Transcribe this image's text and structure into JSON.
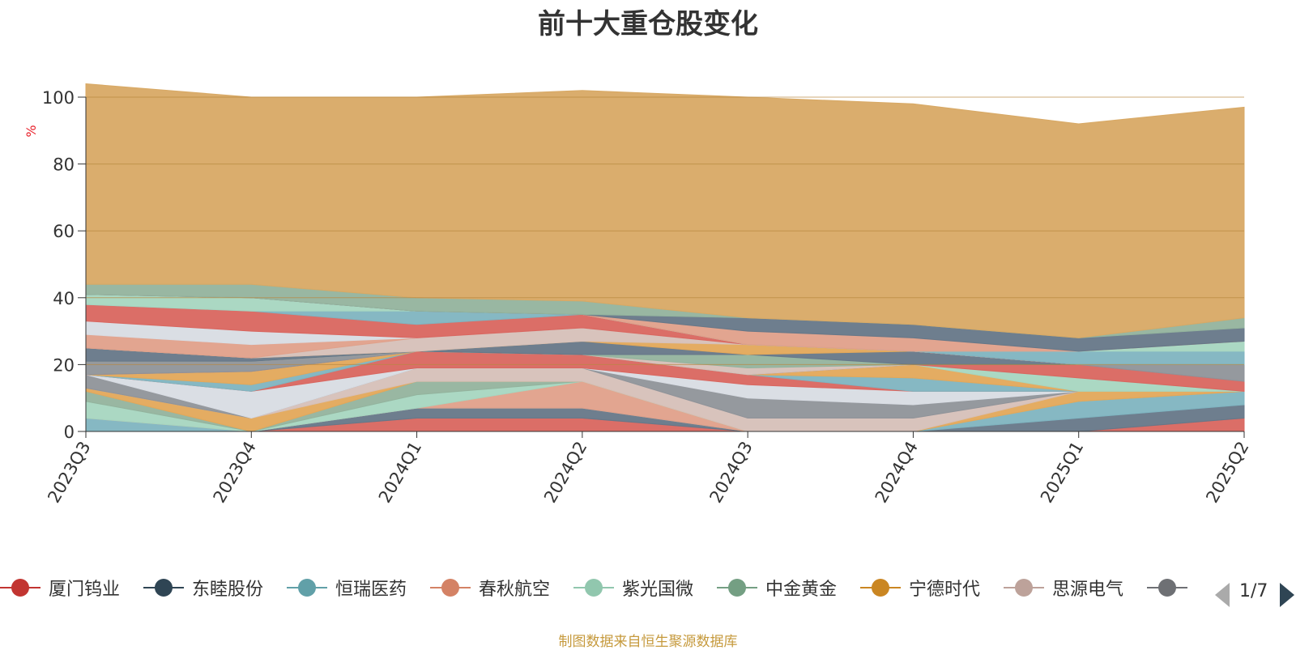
{
  "chart_data": {
    "type": "area",
    "stacked": true,
    "title": "前十大重仓股变化",
    "xlabel": "",
    "ylabel": "%",
    "ylim": [
      0,
      100
    ],
    "yticks": [
      0,
      20,
      40,
      60,
      80,
      100
    ],
    "grid": true,
    "categories": [
      "2023Q3",
      "2023Q4",
      "2024Q1",
      "2024Q2",
      "2024Q3",
      "2024Q4",
      "2025Q1",
      "2025Q2"
    ],
    "series": [
      {
        "name": "厦门钨业",
        "color": "#d9665f",
        "values": [
          0,
          0,
          4,
          4,
          0,
          0,
          0,
          4
        ]
      },
      {
        "name": "东睦股份",
        "color": "#667788",
        "values": [
          0,
          0,
          3,
          3,
          0,
          0,
          4,
          4
        ]
      },
      {
        "name": "恒瑞医药",
        "color": "#7fb4c0",
        "values": [
          4,
          0,
          0,
          0,
          0,
          0,
          5,
          4
        ]
      },
      {
        "name": "春秋航空",
        "color": "#e0a08a",
        "values": [
          0,
          0,
          0,
          8,
          0,
          0,
          0,
          0
        ]
      },
      {
        "name": "紫光国微",
        "color": "#a6d6c0",
        "values": [
          5,
          0,
          4,
          0,
          0,
          0,
          0,
          0
        ]
      },
      {
        "name": "中金黄金",
        "color": "#93b39d",
        "values": [
          3,
          0,
          4,
          0,
          0,
          0,
          0,
          0
        ]
      },
      {
        "name": "宁德时代",
        "color": "#e3a85a",
        "values": [
          1,
          4,
          0,
          0,
          0,
          0,
          3,
          0
        ]
      },
      {
        "name": "思源电气",
        "color": "#d6c0b8",
        "values": [
          0,
          0,
          4,
          4,
          4,
          4,
          0,
          0
        ]
      },
      {
        "name": "",
        "color": "#8f9399",
        "values": [
          4,
          0,
          0,
          0,
          6,
          4,
          0,
          0
        ]
      },
      {
        "name": "",
        "color": "#d8dce3",
        "values": [
          0,
          8,
          0,
          0,
          4,
          4,
          0,
          0
        ]
      },
      {
        "name": "",
        "color": "#d9665f",
        "values": [
          0,
          0,
          5,
          4,
          3,
          0,
          0,
          0
        ]
      },
      {
        "name": "",
        "color": "#7fb4c0",
        "values": [
          0,
          2,
          0,
          0,
          0,
          4,
          0,
          0
        ]
      },
      {
        "name": "",
        "color": "#e3a85a",
        "values": [
          0,
          4,
          0,
          0,
          0,
          4,
          0,
          0
        ]
      },
      {
        "name": "",
        "color": "#a6d6c0",
        "values": [
          0,
          0,
          0,
          0,
          0,
          0,
          4,
          0
        ]
      },
      {
        "name": "",
        "color": "#d9665f",
        "values": [
          0,
          0,
          0,
          0,
          0,
          0,
          4,
          3
        ]
      },
      {
        "name": "",
        "color": "#8f9399",
        "values": [
          4,
          3,
          0,
          0,
          0,
          0,
          0,
          5
        ]
      },
      {
        "name": "",
        "color": "#d6c0b8",
        "values": [
          0,
          0,
          0,
          0,
          2,
          0,
          0,
          0
        ]
      },
      {
        "name": "",
        "color": "#93b39d",
        "values": [
          0,
          0,
          0,
          0,
          4,
          0,
          0,
          0
        ]
      },
      {
        "name": "",
        "color": "#667788",
        "values": [
          4,
          1,
          0,
          4,
          0,
          4,
          0,
          0
        ]
      },
      {
        "name": "",
        "color": "#e3a85a",
        "values": [
          0,
          0,
          0,
          0,
          3,
          0,
          0,
          0
        ]
      },
      {
        "name": "",
        "color": "#d6c0b8",
        "values": [
          0,
          0,
          4,
          4,
          0,
          0,
          0,
          0
        ]
      },
      {
        "name": "",
        "color": "#e0a08a",
        "values": [
          4,
          4,
          0,
          0,
          0,
          0,
          0,
          0
        ]
      },
      {
        "name": "",
        "color": "#d8dce3",
        "values": [
          4,
          4,
          0,
          0,
          0,
          0,
          0,
          0
        ]
      },
      {
        "name": "",
        "color": "#d9665f",
        "values": [
          5,
          6,
          4,
          4,
          0,
          0,
          0,
          0
        ]
      },
      {
        "name": "",
        "color": "#7fb4c0",
        "values": [
          0,
          0,
          4,
          0,
          0,
          0,
          4,
          4
        ]
      },
      {
        "name": "",
        "color": "#a6d6c0",
        "values": [
          3,
          4,
          0,
          0,
          0,
          0,
          0,
          3
        ]
      },
      {
        "name": "",
        "color": "#e0a08a",
        "values": [
          0,
          0,
          0,
          0,
          4,
          4,
          0,
          0
        ]
      },
      {
        "name": "",
        "color": "#667788",
        "values": [
          0,
          0,
          0,
          0,
          4,
          4,
          4,
          4
        ]
      },
      {
        "name": "",
        "color": "#93b39d",
        "values": [
          3,
          4,
          4,
          4,
          0,
          0,
          0,
          3
        ]
      },
      {
        "name": "",
        "color": "#d8a965",
        "values": [
          60,
          56,
          60,
          63,
          66,
          66,
          64,
          63
        ]
      }
    ]
  },
  "legend": {
    "items": [
      {
        "label": "厦门钨业",
        "color": "#c23531"
      },
      {
        "label": "东睦股份",
        "color": "#2f4554"
      },
      {
        "label": "恒瑞医药",
        "color": "#61a0a8"
      },
      {
        "label": "春秋航空",
        "color": "#d48265"
      },
      {
        "label": "紫光国微",
        "color": "#91c7ae"
      },
      {
        "label": "中金黄金",
        "color": "#749f83"
      },
      {
        "label": "宁德时代",
        "color": "#ca8622"
      },
      {
        "label": "思源电气",
        "color": "#bda29a"
      },
      {
        "label": "〉",
        "color": "#6e7074"
      }
    ],
    "page": "1/7"
  },
  "footer": {
    "source_note": "制图数据来自恒生聚源数据库"
  }
}
